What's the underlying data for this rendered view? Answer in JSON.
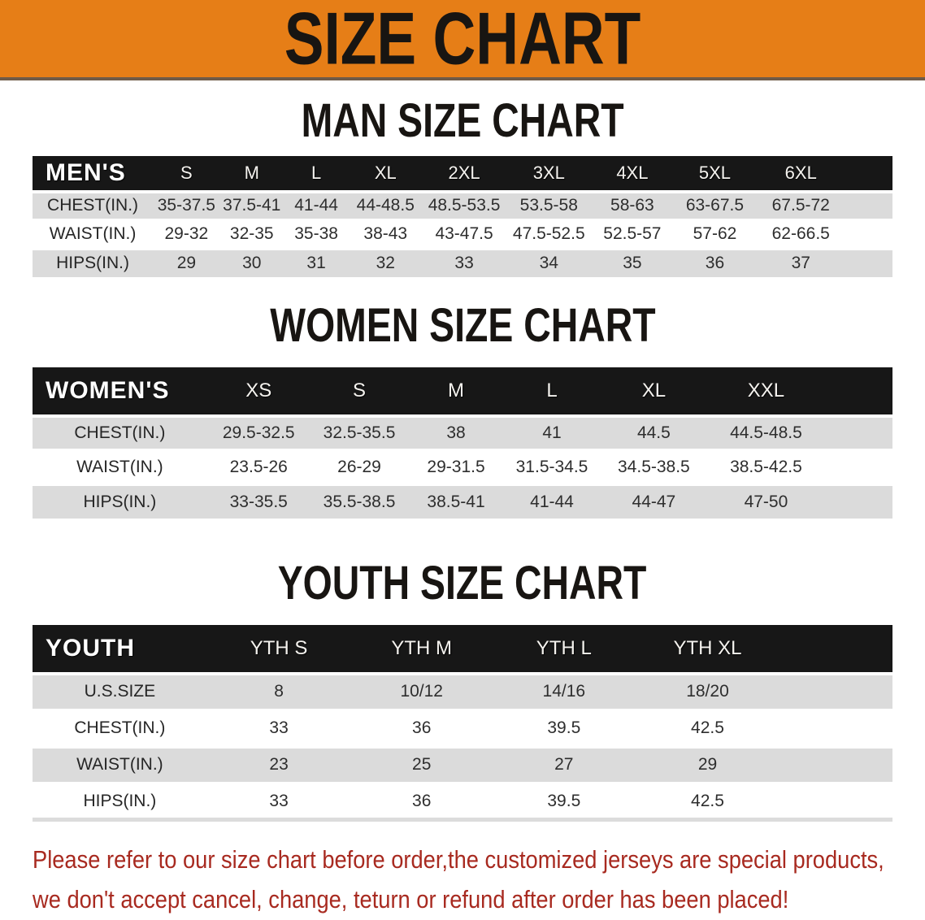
{
  "banner": {
    "title": "SIZE CHART"
  },
  "sections": [
    {
      "heading": "MAN SIZE CHART",
      "header_label": "MEN'S",
      "columns": [
        "S",
        "M",
        "L",
        "XL",
        "2XL",
        "3XL",
        "4XL",
        "5XL",
        "6XL"
      ],
      "rows": [
        {
          "label": "CHEST(IN.)",
          "values": [
            "35-37.5",
            "37.5-41",
            "41-44",
            "44-48.5",
            "48.5-53.5",
            "53.5-58",
            "58-63",
            "63-67.5",
            "67.5-72"
          ]
        },
        {
          "label": "WAIST(IN.)",
          "values": [
            "29-32",
            "32-35",
            "35-38",
            "38-43",
            "43-47.5",
            "47.5-52.5",
            "52.5-57",
            "57-62",
            "62-66.5"
          ]
        },
        {
          "label": "HIPS(IN.)",
          "values": [
            "29",
            "30",
            "31",
            "32",
            "33",
            "34",
            "35",
            "36",
            "37"
          ]
        }
      ]
    },
    {
      "heading": "WOMEN SIZE CHART",
      "header_label": "WOMEN'S",
      "columns": [
        "XS",
        "S",
        "M",
        "L",
        "XL",
        "XXL"
      ],
      "rows": [
        {
          "label": "CHEST(IN.)",
          "values": [
            "29.5-32.5",
            "32.5-35.5",
            "38",
            "41",
            "44.5",
            "44.5-48.5"
          ]
        },
        {
          "label": "WAIST(IN.)",
          "values": [
            "23.5-26",
            "26-29",
            "29-31.5",
            "31.5-34.5",
            "34.5-38.5",
            "38.5-42.5"
          ]
        },
        {
          "label": "HIPS(IN.)",
          "values": [
            "33-35.5",
            "35.5-38.5",
            "38.5-41",
            "41-44",
            "44-47",
            "47-50"
          ]
        }
      ]
    },
    {
      "heading": "YOUTH SIZE CHART",
      "header_label": "YOUTH",
      "columns": [
        "YTH S",
        "YTH M",
        "YTH L",
        "YTH XL"
      ],
      "rows": [
        {
          "label": "U.S.SIZE",
          "values": [
            "8",
            "10/12",
            "14/16",
            "18/20"
          ]
        },
        {
          "label": "CHEST(IN.)",
          "values": [
            "33",
            "36",
            "39.5",
            "42.5"
          ]
        },
        {
          "label": "WAIST(IN.)",
          "values": [
            "23",
            "25",
            "27",
            "29"
          ]
        },
        {
          "label": "HIPS(IN.)",
          "values": [
            "33",
            "36",
            "39.5",
            "42.5"
          ]
        }
      ]
    }
  ],
  "footer": {
    "line1": "Please refer to our size chart before order,the customized jerseys are special products,",
    "line2": "we don't accept cancel, change, teturn or refund after order has been placed!"
  },
  "colors": {
    "banner_bg": "#E67E17",
    "header_bar": "#171717",
    "row_stripe": "#DBDBDB",
    "notice_text": "#A82A20"
  }
}
